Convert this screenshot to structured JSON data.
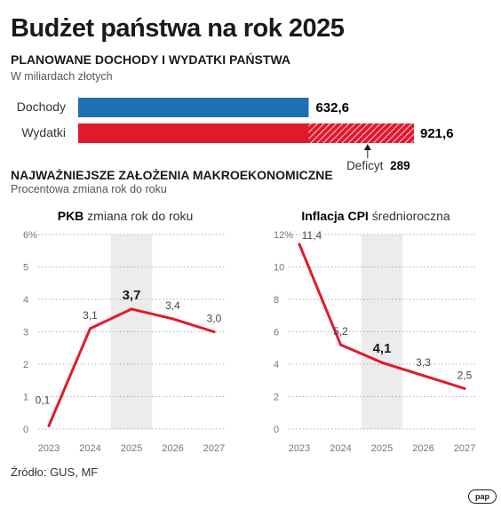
{
  "title": "Budżet państwa na rok 2025",
  "budget": {
    "heading": "PLANOWANE DOCHODY I WYDATKI PAŃSTWA",
    "subheading": "W miliardach złotych",
    "bars": [
      {
        "label": "Dochody",
        "value": 632.6,
        "value_label": "632,6",
        "color": "#1f6fb5"
      },
      {
        "label": "Wydatki",
        "value": 921.6,
        "value_label": "921,6",
        "color": "#e2192c"
      }
    ],
    "deficit_label": "Deficyt",
    "deficit_value": "289"
  },
  "macro": {
    "heading": "NAJWAŻNIEJSZE ZAŁOŻENIA MAKROEKONOMICZNE",
    "subheading": "Procentowa zmiana rok do roku"
  },
  "chart_data": [
    {
      "type": "line",
      "title_bold": "PKB",
      "title_rest": " zmiana rok do roku",
      "x": [
        "2023",
        "2024",
        "2025",
        "2026",
        "2027"
      ],
      "values": [
        0.1,
        3.1,
        3.7,
        3.4,
        3.0
      ],
      "value_labels": [
        "0,1",
        "3,1",
        "3,7",
        "3,4",
        "3,0"
      ],
      "highlight": "2025",
      "ylim": [
        0,
        6
      ],
      "yticks": [
        "0",
        "1",
        "2",
        "3",
        "4",
        "5",
        "6%"
      ],
      "color": "#e2192c"
    },
    {
      "type": "line",
      "title_bold": "Inflacja CPI",
      "title_rest": " średnioroczna",
      "x": [
        "2023",
        "2024",
        "2025",
        "2026",
        "2027"
      ],
      "values": [
        11.4,
        5.2,
        4.1,
        3.3,
        2.5
      ],
      "value_labels": [
        "11,4",
        "5,2",
        "4,1",
        "3,3",
        "2,5"
      ],
      "highlight": "2025",
      "ylim": [
        0,
        12
      ],
      "yticks": [
        "0",
        "2",
        "4",
        "6",
        "8",
        "10",
        "12%"
      ],
      "color": "#e2192c"
    }
  ],
  "source": "Źródło: GUS, MF",
  "logo": "pap"
}
